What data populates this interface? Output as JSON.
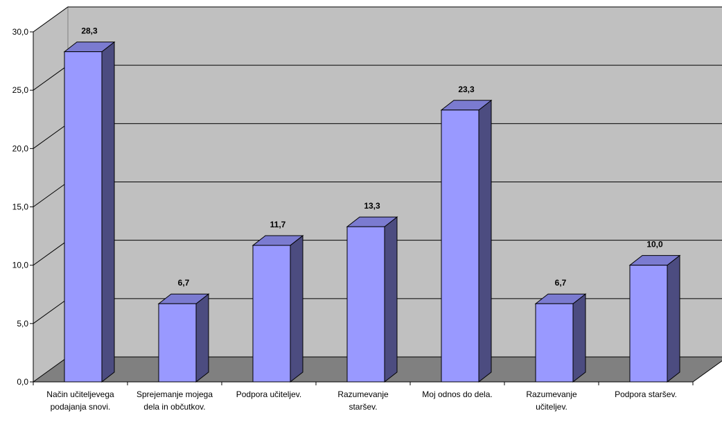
{
  "chart_data": {
    "type": "bar",
    "title": "",
    "xlabel": "",
    "ylabel": "",
    "categories": [
      [
        "Način učiteljevega",
        "podajanja snovi."
      ],
      [
        "Sprejemanje mojega",
        "dela in občutkov."
      ],
      [
        "Podpora učiteljev."
      ],
      [
        "Razumevanje",
        "staršev."
      ],
      [
        "Moj odnos do dela."
      ],
      [
        "Razumevanje",
        "učiteljev."
      ],
      [
        "Podpora staršev."
      ]
    ],
    "values": [
      28.3,
      6.7,
      11.7,
      13.3,
      23.3,
      6.7,
      10.0
    ],
    "value_labels": [
      "28,3",
      "6,7",
      "11,7",
      "13,3",
      "23,3",
      "6,7",
      "10,0"
    ],
    "ylim": [
      0,
      30
    ],
    "y_ticks": [
      0,
      5,
      10,
      15,
      20,
      25,
      30
    ],
    "y_tick_labels": [
      "0,0",
      "5,0",
      "10,0",
      "15,0",
      "20,0",
      "25,0",
      "30,0"
    ],
    "grid": true,
    "legend": "none",
    "style": "3d",
    "colors": {
      "bar_front": "#9999ff",
      "bar_side": "#4c4c80",
      "bar_top": "#7b7bd0",
      "back_wall": "#c0c0c0",
      "side_wall": "#c0c0c0",
      "floor": "#808080",
      "gridline": "#000000"
    }
  }
}
